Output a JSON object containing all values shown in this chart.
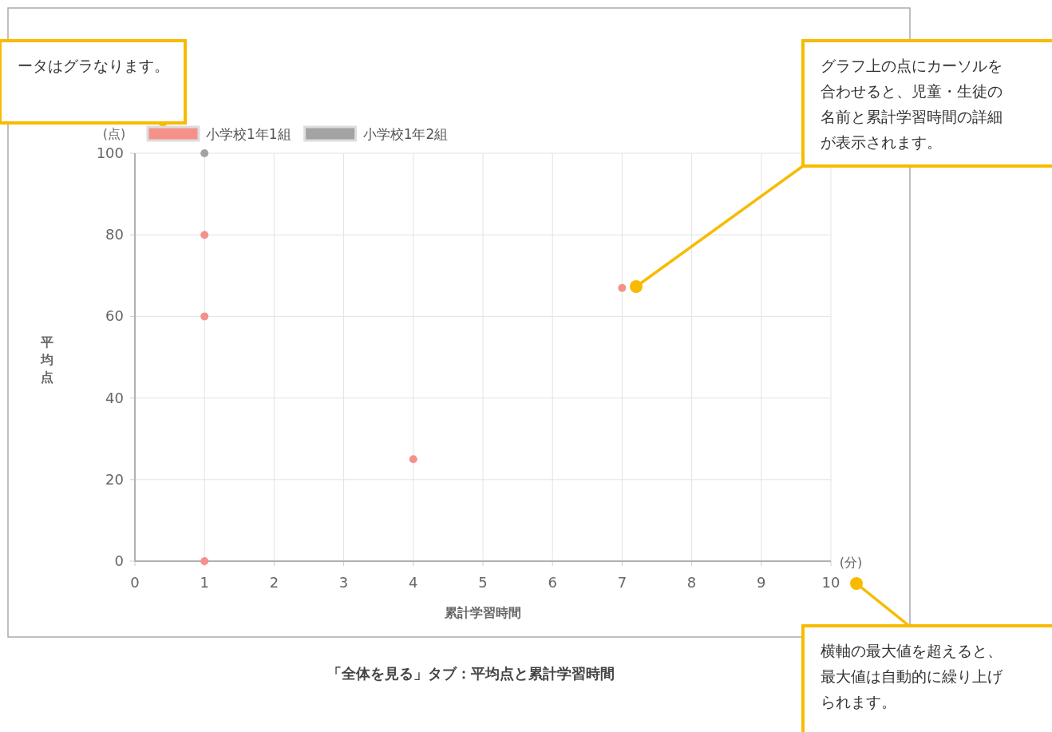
{
  "chart_data": {
    "type": "scatter",
    "xlabel": "累計学習時間",
    "ylabel": "平均点",
    "series": [
      {
        "name": "小学校1年1組",
        "color": "#f4928a",
        "x": [
          1,
          1,
          1,
          4,
          7
        ],
        "values": [
          0,
          60,
          80,
          25,
          67
        ]
      },
      {
        "name": "小学校1年2組",
        "color": "#a3a3a3",
        "x": [
          1
        ],
        "values": [
          100
        ]
      }
    ],
    "xlim": [
      0,
      10
    ],
    "ylim": [
      0,
      100
    ],
    "xticks": [
      0,
      1,
      2,
      3,
      4,
      5,
      6,
      7,
      8,
      9,
      10
    ],
    "yticks": [
      0,
      20,
      40,
      60,
      80,
      100
    ],
    "grid": true,
    "legend": "top",
    "marker": "circle",
    "annotations": [
      "ータはグラなります。",
      "グラフ上の点にカーソルを合わせると、児童・生徒の名前と累計学習時間の詳細が表示されます。",
      "横軸の最大値を超えると、最大値は自動的に繰り上げられます。",
      "(点)",
      "(分)",
      "「全体を見る」タブ：平均点と累計学習時間"
    ]
  }
}
